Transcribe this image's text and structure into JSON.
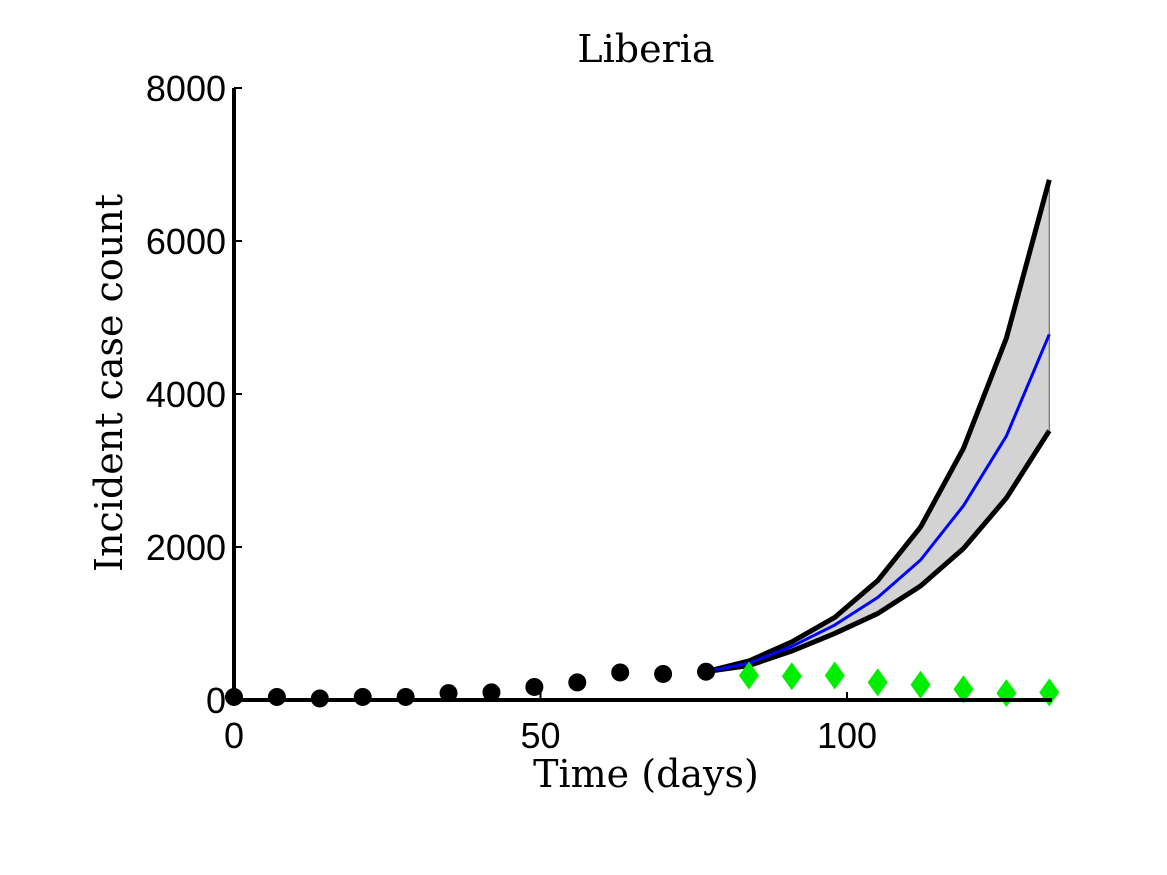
{
  "chart_data": {
    "type": "line",
    "title": "Liberia",
    "xlabel": "Time (days)",
    "ylabel": "Incident case count",
    "xlim": [
      0,
      134
    ],
    "ylim": [
      0,
      8000
    ],
    "x_ticks": [
      0,
      50,
      100
    ],
    "y_ticks": [
      0,
      2000,
      4000,
      6000,
      8000
    ],
    "grid": false,
    "legend": "none",
    "colors": {
      "observed": "#000000",
      "forecast_mean": "#0000ff",
      "band_fill": "#d3d3d3",
      "band_edges": "#000000",
      "holdout": "#00ee00"
    },
    "observed": {
      "x": [
        0,
        7,
        14,
        21,
        28,
        35,
        42,
        49,
        56,
        63,
        70,
        77
      ],
      "y": [
        40,
        40,
        20,
        40,
        40,
        90,
        100,
        170,
        230,
        360,
        340,
        370
      ]
    },
    "forecast": {
      "x": [
        77,
        84,
        91,
        98,
        105,
        112,
        119,
        126,
        133
      ],
      "mean": [
        370,
        480,
        700,
        980,
        1340,
        1830,
        2540,
        3450,
        4780
      ],
      "upper": [
        370,
        510,
        760,
        1080,
        1560,
        2260,
        3290,
        4730,
        6800
      ],
      "lower": [
        370,
        450,
        640,
        870,
        1130,
        1490,
        1980,
        2640,
        3520
      ]
    },
    "holdout": {
      "x": [
        84,
        91,
        98,
        105,
        112,
        119,
        126,
        133
      ],
      "y": [
        320,
        310,
        320,
        230,
        200,
        140,
        90,
        100
      ]
    }
  }
}
